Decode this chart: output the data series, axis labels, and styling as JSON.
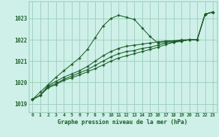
{
  "bg_color": "#cef0e8",
  "grid_color": "#9ecfbe",
  "line_color": "#1a5c28",
  "title": "Graphe pression niveau de la mer (hPa)",
  "xlim": [
    -0.5,
    23.5
  ],
  "ylim": [
    1018.6,
    1023.8
  ],
  "yticks": [
    1019,
    1020,
    1021,
    1022,
    1023
  ],
  "xticks": [
    0,
    1,
    2,
    3,
    4,
    5,
    6,
    7,
    8,
    9,
    10,
    11,
    12,
    13,
    14,
    15,
    16,
    17,
    18,
    19,
    20,
    21,
    22,
    23
  ],
  "xtick_labels": [
    "0",
    "1",
    "2",
    "3",
    "4",
    "5",
    "6",
    "7",
    "8",
    "9",
    "10",
    "11",
    "12",
    "13",
    "14",
    "15",
    "16",
    "17",
    "18",
    "19",
    "20",
    "21",
    "22",
    "23"
  ],
  "series1": [
    1019.2,
    1019.55,
    1019.9,
    1020.25,
    1020.55,
    1020.85,
    1021.15,
    1021.55,
    1022.1,
    1022.65,
    1023.0,
    1023.15,
    1023.05,
    1022.95,
    1022.55,
    1022.15,
    1021.85,
    1021.9,
    1021.95,
    1021.95,
    1022.0,
    1022.0,
    1023.2,
    1023.3
  ],
  "series2": [
    1019.2,
    1019.4,
    1019.85,
    1020.05,
    1020.25,
    1020.4,
    1020.55,
    1020.75,
    1021.0,
    1021.25,
    1021.45,
    1021.6,
    1021.7,
    1021.75,
    1021.8,
    1021.85,
    1021.9,
    1021.95,
    1021.95,
    1022.0,
    1022.0,
    1022.0,
    1023.2,
    1023.3
  ],
  "series3": [
    1019.2,
    1019.4,
    1019.8,
    1019.95,
    1020.15,
    1020.3,
    1020.45,
    1020.6,
    1020.8,
    1021.0,
    1021.2,
    1021.35,
    1021.45,
    1021.5,
    1021.6,
    1021.65,
    1021.75,
    1021.85,
    1021.9,
    1021.95,
    1022.0,
    1022.0,
    1023.2,
    1023.3
  ],
  "series4": [
    1019.2,
    1019.4,
    1019.75,
    1019.9,
    1020.1,
    1020.22,
    1020.35,
    1020.5,
    1020.65,
    1020.82,
    1021.0,
    1021.15,
    1021.25,
    1021.35,
    1021.45,
    1021.55,
    1021.65,
    1021.78,
    1021.88,
    1021.93,
    1022.0,
    1022.0,
    1023.2,
    1023.3
  ]
}
